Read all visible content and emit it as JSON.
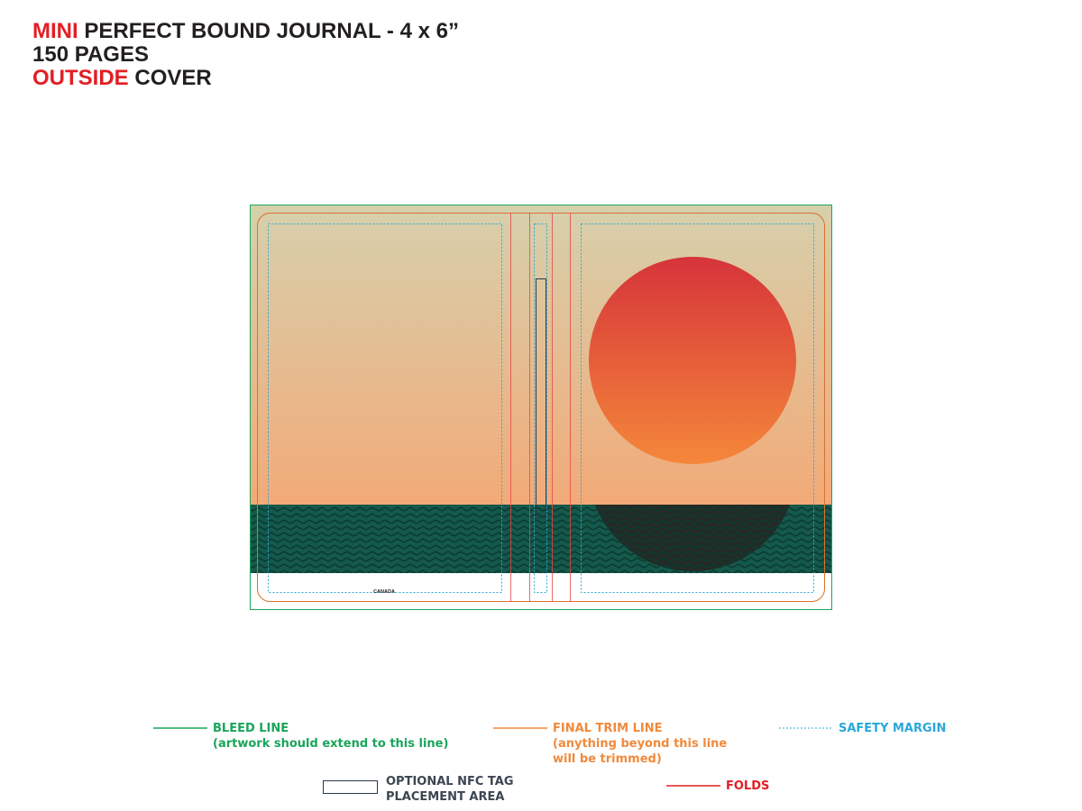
{
  "header": {
    "line1_accent": "MINI",
    "line1_rest": " PERFECT BOUND JOURNAL - 4 x 6”",
    "line2": "150 PAGES",
    "line3_accent": "OUTSIDE",
    "line3_rest": " COVER"
  },
  "cover": {
    "back_cover_text": "CANADA"
  },
  "legend": {
    "bleed": {
      "label": "BLEED LINE",
      "note": "(artwork should extend to this line)"
    },
    "trim": {
      "label": "FINAL TRIM LINE",
      "note1": "(anything beyond this line",
      "note2": "will be trimmed)"
    },
    "safety": {
      "label": "SAFETY MARGIN"
    },
    "nfc": {
      "label1": "OPTIONAL NFC TAG",
      "label2": "PLACEMENT AREA"
    },
    "folds": {
      "label": "FOLDS"
    }
  },
  "colors": {
    "bleed": "#1aa55a",
    "trim": "#f08a3c",
    "safety": "#2aa8d8",
    "folds": "#e31e24",
    "sky_top": "#d6d0ac",
    "sky_bottom": "#f2aa78",
    "sun_top": "#d6343a",
    "sun_bottom": "#f5873a",
    "sea": "#14594b",
    "sea_shadow": "#232b26"
  }
}
